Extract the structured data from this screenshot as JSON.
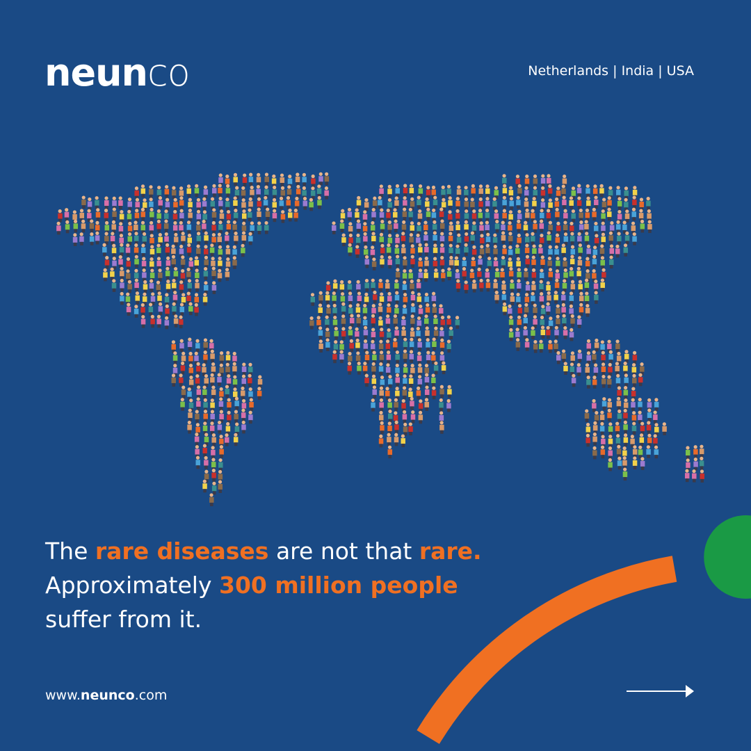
{
  "brand": {
    "logo_bold": "neun",
    "logo_light": "co",
    "logo_text": "neunco"
  },
  "header": {
    "locations": "Netherlands | India | USA"
  },
  "headline": {
    "p1": "The ",
    "h1": "rare diseases",
    "p2": " are not that ",
    "h2": "rare.",
    "p3": "Approximately ",
    "h3": "300 million people",
    "p4": "suffer from it."
  },
  "footer": {
    "url_prefix": "www.",
    "url_brand": "neunco",
    "url_suffix": ".com",
    "arrow_icon": "arrow-right-icon"
  },
  "colors": {
    "background": "#1a4a85",
    "accent_orange": "#f07022",
    "accent_green": "#1a9a45"
  }
}
